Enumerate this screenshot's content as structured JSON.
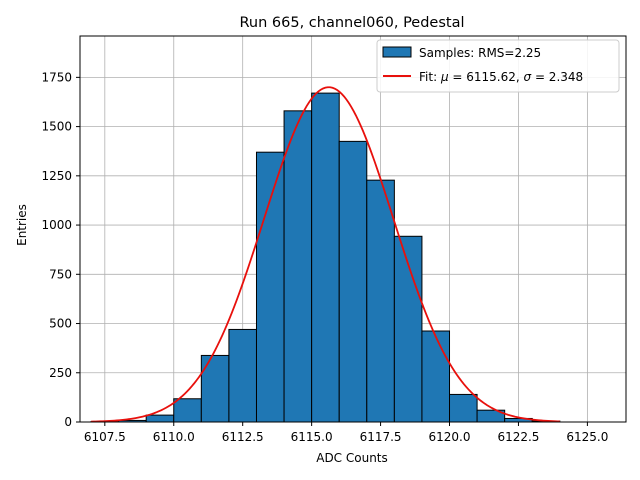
{
  "chart_data": {
    "type": "bar",
    "title": "Run 665, channel060, Pedestal",
    "xlabel": "ADC Counts",
    "ylabel": "Entries",
    "xlim": [
      6106.6,
      6126.4
    ],
    "ylim": [
      0,
      1960
    ],
    "grid": true,
    "legend_position": "top-right",
    "xticks": [
      6107.5,
      6110.0,
      6112.5,
      6115.0,
      6117.5,
      6120.0,
      6122.5,
      6125.0
    ],
    "xtick_labels": [
      "6107.5",
      "6110.0",
      "6112.5",
      "6115.0",
      "6117.5",
      "6120.0",
      "6122.5",
      "6125.0"
    ],
    "yticks": [
      0,
      250,
      500,
      750,
      1000,
      1250,
      1500,
      1750
    ],
    "ytick_labels": [
      "0",
      "250",
      "500",
      "750",
      "1000",
      "1250",
      "1500",
      "1750"
    ],
    "bin_edges": [
      6107,
      6108,
      6109,
      6110,
      6111,
      6112,
      6113,
      6114,
      6115,
      6116,
      6117,
      6118,
      6119,
      6120,
      6121,
      6122,
      6123,
      6124
    ],
    "series": [
      {
        "name": "Samples: RMS=2.25",
        "kind": "histogram",
        "color": "#1f77b4",
        "edgecolor": "#000000",
        "values": [
          2,
          8,
          35,
          118,
          338,
          470,
          1370,
          1580,
          1670,
          1425,
          1228,
          943,
          462,
          140,
          60,
          18,
          5
        ]
      },
      {
        "name": "Fit: μ = 6115.62, σ = 2.348",
        "kind": "line",
        "color": "#e8100c",
        "mu": 6115.62,
        "sigma": 2.348,
        "amplitude": 1700,
        "x_range": [
          6107,
          6124
        ]
      }
    ],
    "legend": [
      {
        "label": "Samples: RMS=2.25",
        "color": "#1f77b4",
        "marker": "patch"
      },
      {
        "label_prefix": "Fit: ",
        "mu_symbol": "μ",
        "mu_text": " = 6115.62, ",
        "sigma_symbol": "σ",
        "sigma_text": " = 2.348",
        "color": "#e8100c",
        "marker": "line"
      }
    ]
  }
}
